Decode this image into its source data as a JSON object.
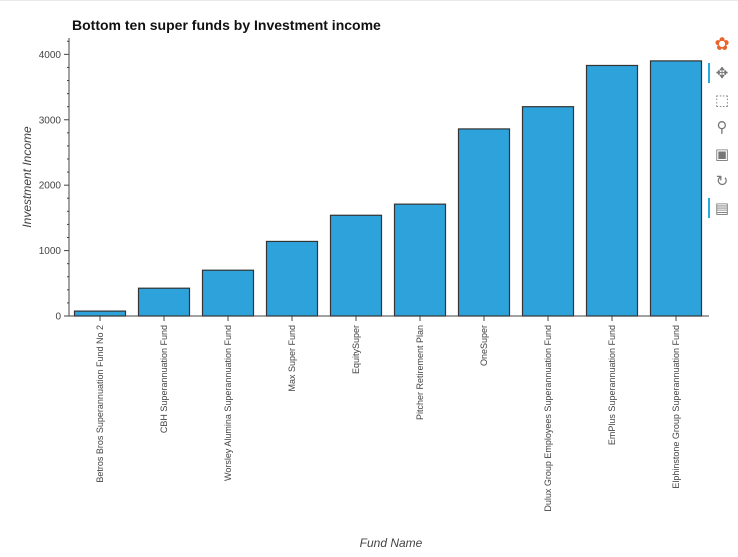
{
  "chart_data": {
    "type": "bar",
    "title": "Bottom ten super funds by Investment income",
    "xlabel": "Fund Name",
    "ylabel": "Investment Income",
    "categories": [
      "Betros Bros Superannuation Fund No 2",
      "CBH Superannuation Fund",
      "Worsley Alumina Superannuation Fund",
      "Max Super Fund",
      "EquitySuper",
      "Pitcher Retirement Plan",
      "OneSuper",
      "Dulux Group Employees Superannuation Fund",
      "EmPlus Superannuation Fund",
      "Elphinstone Group Superannuation Fund"
    ],
    "values": [
      75,
      425,
      700,
      1140,
      1540,
      1710,
      2860,
      3200,
      3830,
      3900
    ],
    "ylim": [
      0,
      4250
    ],
    "yticks": [
      0,
      1000,
      2000,
      3000,
      4000
    ],
    "bar_color": "#2ea3db",
    "bar_edge_color": "#333333",
    "grid": false
  },
  "toolbar": {
    "items": [
      {
        "name": "bokeh-logo-icon",
        "glyph": "✿",
        "color": "#e8642c"
      },
      {
        "name": "pan-tool-icon",
        "glyph": "✥",
        "active": true
      },
      {
        "name": "box-zoom-tool-icon",
        "glyph": "⬚"
      },
      {
        "name": "wheel-zoom-tool-icon",
        "glyph": "⚲"
      },
      {
        "name": "save-tool-icon",
        "glyph": "▣"
      },
      {
        "name": "reset-tool-icon",
        "glyph": "↻"
      },
      {
        "name": "hover-tool-icon",
        "glyph": "▤",
        "active": true
      }
    ]
  }
}
